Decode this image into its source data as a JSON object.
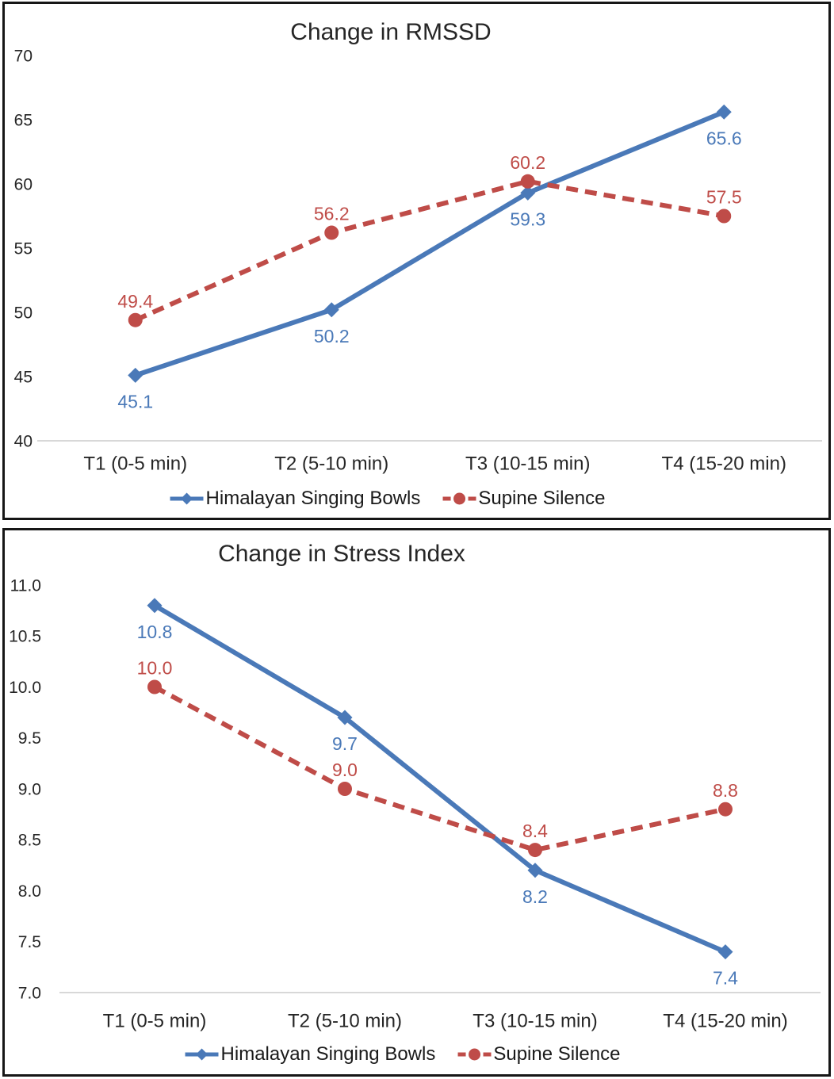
{
  "page": {
    "background_color": "#FFFFFF",
    "panel_border_color": "#161616",
    "axis_line_color": "#D8D8D8",
    "text_color": "#262626",
    "accent_blue": "#4A79B8",
    "accent_red": "#BF4C48"
  },
  "chart_data": [
    {
      "type": "line",
      "title": "Change in RMSSD",
      "categories": [
        "T1 (0-5 min)",
        "T2 (5-10 min)",
        "T3 (10-15 min)",
        "T4 (15-20 min)"
      ],
      "series": [
        {
          "name": "Himalayan Singing Bowls",
          "color": "#4A79B8",
          "marker": "diamond",
          "line_style": "solid",
          "label_position": "below",
          "values": [
            45.1,
            50.2,
            59.3,
            65.6
          ],
          "value_labels": [
            "45.1",
            "50.2",
            "59.3",
            "65.6"
          ]
        },
        {
          "name": "Supine Silence",
          "color": "#BF4C48",
          "marker": "circle",
          "line_style": "dashed",
          "label_position": "above",
          "values": [
            49.4,
            56.2,
            60.2,
            57.5
          ],
          "value_labels": [
            "49.4",
            "56.2",
            "60.2",
            "57.5"
          ]
        }
      ],
      "xlabel": "",
      "ylabel": "",
      "ylim": [
        40,
        70
      ],
      "yticks": [
        40,
        45,
        50,
        55,
        60,
        65,
        70
      ],
      "ytick_labels": [
        "40",
        "45",
        "50",
        "55",
        "60",
        "65",
        "70"
      ],
      "grid": "bottom axis line only",
      "legend_position": "bottom"
    },
    {
      "type": "line",
      "title": "Change in Stress Index",
      "categories": [
        "T1 (0-5 min)",
        "T2 (5-10 min)",
        "T3 (10-15 min)",
        "T4 (15-20 min)"
      ],
      "series": [
        {
          "name": "Himalayan Singing Bowls",
          "color": "#4A79B8",
          "marker": "diamond",
          "line_style": "solid",
          "label_position": "below",
          "values": [
            10.8,
            9.7,
            8.2,
            7.4
          ],
          "value_labels": [
            "10.8",
            "9.7",
            "8.2",
            "7.4"
          ]
        },
        {
          "name": "Supine Silence",
          "color": "#BF4C48",
          "marker": "circle",
          "line_style": "dashed",
          "label_position": "above",
          "values": [
            10.0,
            9.0,
            8.4,
            8.8
          ],
          "value_labels": [
            "10.0",
            "9.0",
            "8.4",
            "8.8"
          ]
        }
      ],
      "xlabel": "",
      "ylabel": "",
      "ylim": [
        7.0,
        11.0
      ],
      "yticks": [
        7.0,
        7.5,
        8.0,
        8.5,
        9.0,
        9.5,
        10.0,
        10.5,
        11.0
      ],
      "ytick_labels": [
        "7.0",
        "7.5",
        "8.0",
        "8.5",
        "9.0",
        "9.5",
        "10.0",
        "10.5",
        "11.0"
      ],
      "grid": "bottom axis line only",
      "legend_position": "bottom"
    }
  ]
}
